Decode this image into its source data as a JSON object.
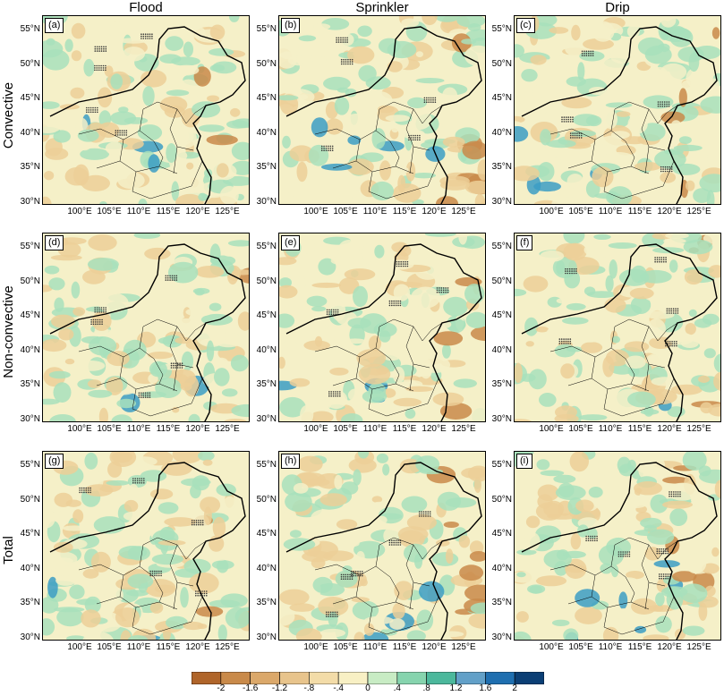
{
  "columns": [
    "Flood",
    "Sprinkler",
    "Drip"
  ],
  "rows": [
    "Convective",
    "Non-convective",
    "Total"
  ],
  "panel_labels": [
    "(a)",
    "(b)",
    "(c)",
    "(d)",
    "(e)",
    "(f)",
    "(g)",
    "(h)",
    "(i)"
  ],
  "lat_ticks": [
    "55°N",
    "50°N",
    "45°N",
    "40°N",
    "35°N",
    "30°N"
  ],
  "lon_ticks": [
    "100°E",
    "105°E",
    "110°E",
    "115°E",
    "120°E",
    "125°E"
  ],
  "colorbar": {
    "labels": [
      "-2",
      "-1.6",
      "-1.2",
      "-.8",
      "-.4",
      "0",
      ".4",
      ".8",
      "1.2",
      "1.6",
      "2"
    ],
    "colors": [
      "#b0652a",
      "#c98a4a",
      "#dba86a",
      "#e8c48c",
      "#f3dca8",
      "#f8f0c4",
      "#c8ecc4",
      "#86d4ae",
      "#4cb89c",
      "#62a0c8",
      "#1f6fb0",
      "#0b3f75"
    ]
  },
  "map_colors": {
    "background": "#f5f0c8",
    "positive": "#a8e0bc",
    "strong_positive": "#3c9ec4",
    "negative": "#eccf98",
    "strong_negative": "#c98a4a",
    "boundary": "#000000",
    "stipple": "#333333"
  }
}
